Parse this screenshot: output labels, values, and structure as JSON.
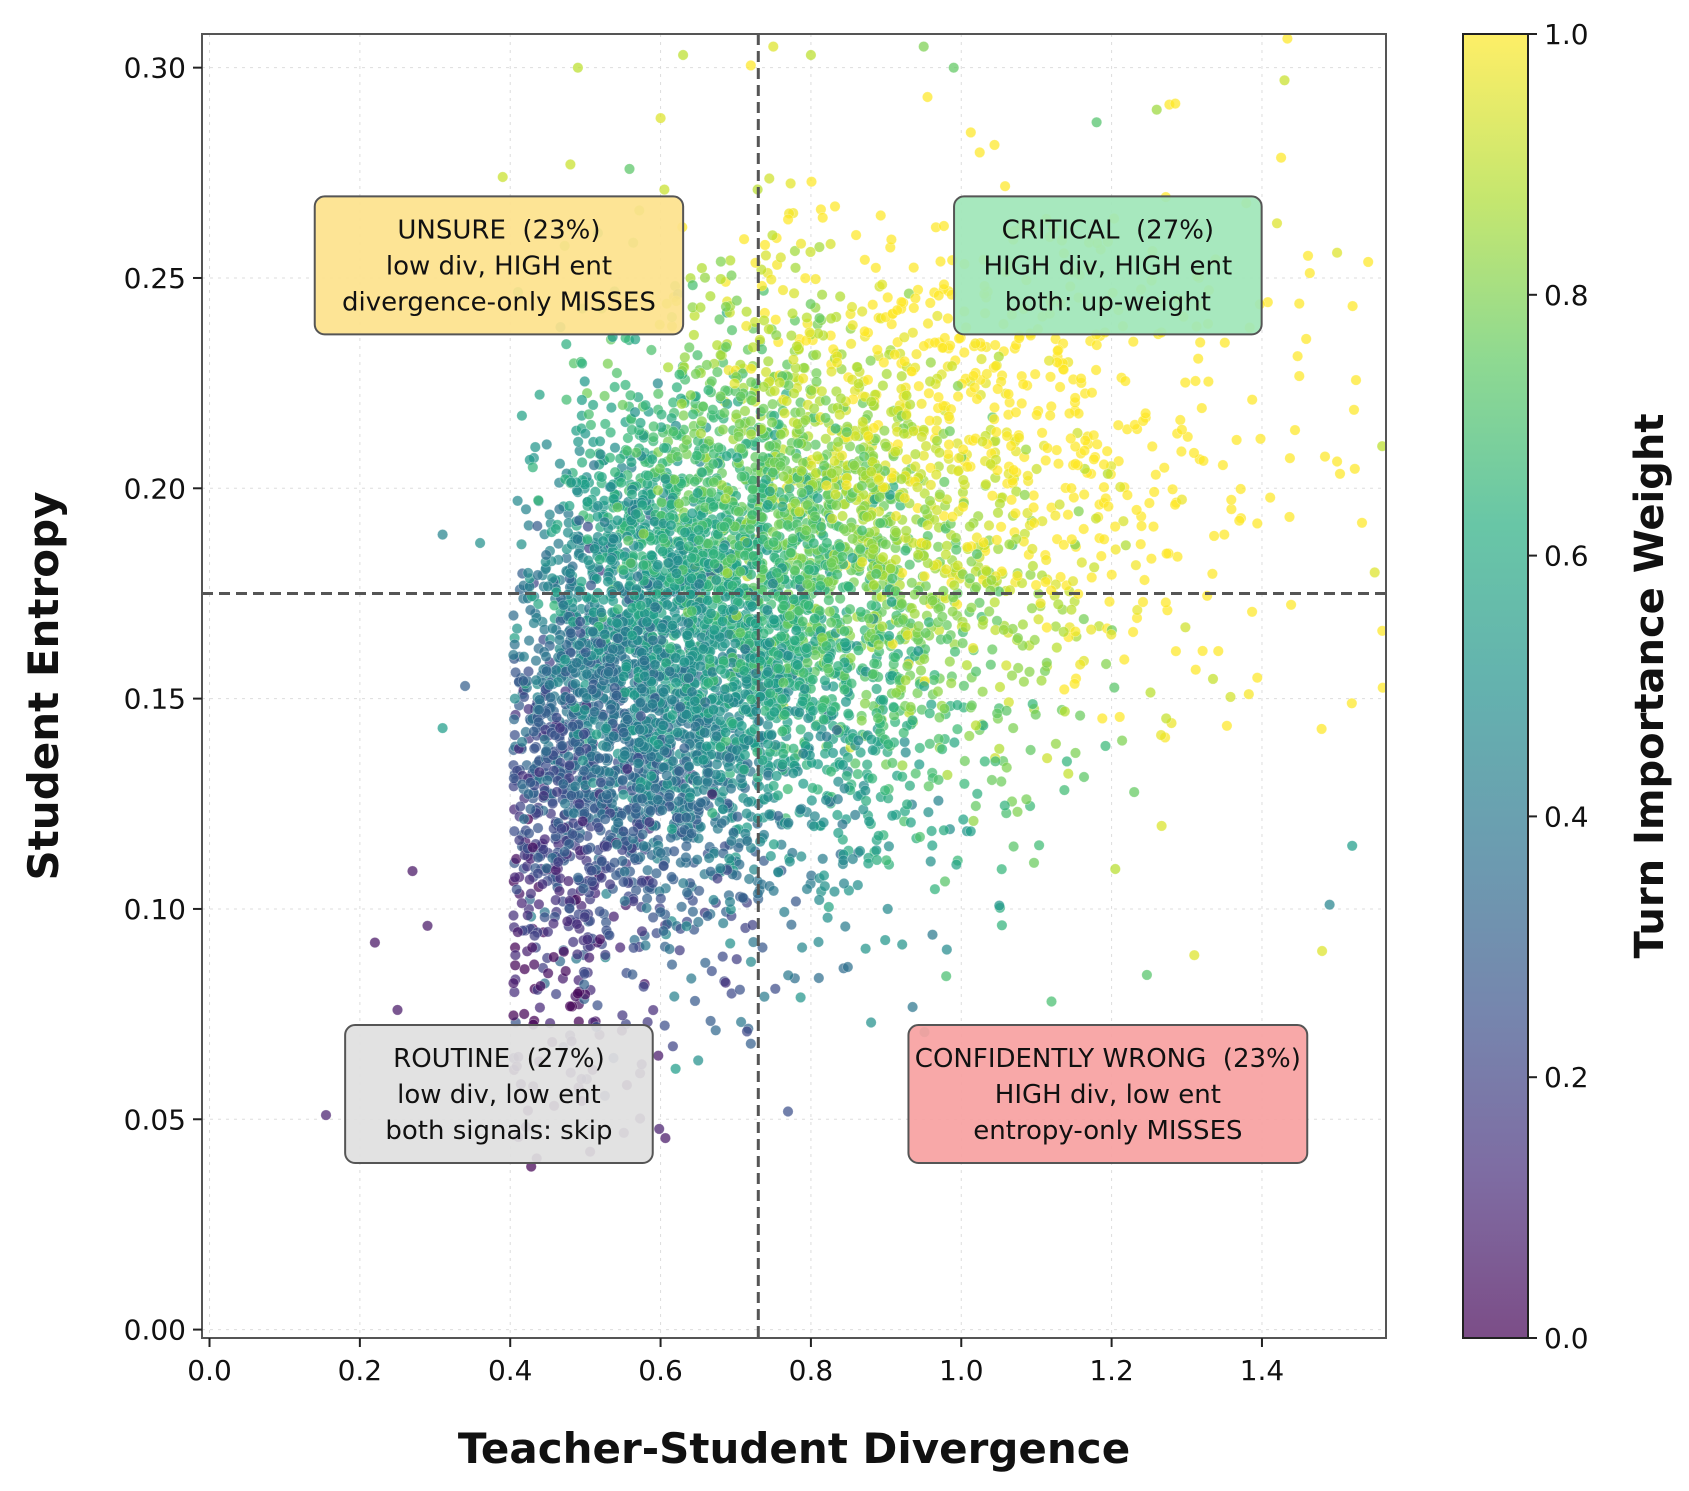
{
  "chart_data": {
    "type": "scatter",
    "title": "",
    "xlabel": "Teacher-Student Divergence",
    "ylabel": "Student Entropy",
    "xlim": [
      -0.01,
      1.565
    ],
    "ylim": [
      -0.002,
      0.308
    ],
    "x_ticks": [
      "0.0",
      "0.2",
      "0.4",
      "0.6",
      "0.8",
      "1.0",
      "1.2",
      "1.4"
    ],
    "y_ticks": [
      "0.00",
      "0.05",
      "0.10",
      "0.15",
      "0.20",
      "0.25",
      "0.30"
    ],
    "grid": true,
    "thresholds": {
      "x": 0.73,
      "y": 0.175
    },
    "colorbar": {
      "label": "Turn Importance Weight",
      "range": [
        0.0,
        1.0
      ],
      "ticks": [
        "0.0",
        "0.2",
        "0.4",
        "0.6",
        "0.8",
        "1.0"
      ],
      "colormap": "viridis"
    },
    "colors": {
      "unsure": "#fde28c",
      "critical": "#9fe6b8",
      "routine": "#e0e0e0",
      "confidently_wrong": "#f7a1a1"
    },
    "annotations": [
      {
        "id": "unsure",
        "x": 0.385,
        "y": 0.253,
        "lines": [
          "UNSURE  (23%)",
          "low div, HIGH ent",
          "divergence-only MISSES"
        ]
      },
      {
        "id": "critical",
        "x": 1.195,
        "y": 0.253,
        "lines": [
          "CRITICAL  (27%)",
          "HIGH div, HIGH ent",
          "both: up-weight"
        ]
      },
      {
        "id": "routine",
        "x": 0.385,
        "y": 0.056,
        "lines": [
          "ROUTINE  (27%)",
          "low div, low ent",
          "both signals: skip"
        ]
      },
      {
        "id": "confidently_wrong",
        "x": 1.195,
        "y": 0.056,
        "lines": [
          "CONFIDENTLY WRONG  (23%)",
          "HIGH div, low ent",
          "entropy-only MISSES"
        ]
      }
    ],
    "series": [
      {
        "distribution": "bivariate cloud centred near divergence 0.68, entropy 0.17; colour increases with divergence and entropy",
        "n_points": 6000,
        "points": [
          [
            0.155,
            0.051,
            0.08
          ],
          [
            0.22,
            0.092,
            0.05
          ],
          [
            0.25,
            0.076,
            0.06
          ],
          [
            0.27,
            0.109,
            0.05
          ],
          [
            0.29,
            0.096,
            0.06
          ],
          [
            0.31,
            0.189,
            0.45
          ],
          [
            0.31,
            0.143,
            0.55
          ],
          [
            0.34,
            0.153,
            0.3
          ],
          [
            0.36,
            0.187,
            0.5
          ],
          [
            0.39,
            0.274,
            0.92
          ],
          [
            0.43,
            0.205,
            0.65
          ],
          [
            0.49,
            0.3,
            0.9
          ],
          [
            0.48,
            0.277,
            0.92
          ],
          [
            0.6,
            0.288,
            0.95
          ],
          [
            0.63,
            0.303,
            0.9
          ],
          [
            0.62,
            0.062,
            0.55
          ],
          [
            0.65,
            0.064,
            0.5
          ],
          [
            0.75,
            0.305,
            0.95
          ],
          [
            0.8,
            0.303,
            0.9
          ],
          [
            0.95,
            0.305,
            0.8
          ],
          [
            0.99,
            0.3,
            0.75
          ],
          [
            1.18,
            0.287,
            0.72
          ],
          [
            1.26,
            0.29,
            0.85
          ],
          [
            1.43,
            0.297,
            0.92
          ],
          [
            1.42,
            0.263,
            0.95
          ],
          [
            1.5,
            0.256,
            0.95
          ],
          [
            1.56,
            0.21,
            0.9
          ],
          [
            1.55,
            0.18,
            0.95
          ],
          [
            1.52,
            0.115,
            0.55
          ],
          [
            1.49,
            0.101,
            0.45
          ],
          [
            1.48,
            0.09,
            0.95
          ],
          [
            1.31,
            0.089,
            0.95
          ],
          [
            1.12,
            0.078,
            0.7
          ],
          [
            0.98,
            0.084,
            0.7
          ],
          [
            0.88,
            0.073,
            0.5
          ]
        ]
      }
    ]
  }
}
